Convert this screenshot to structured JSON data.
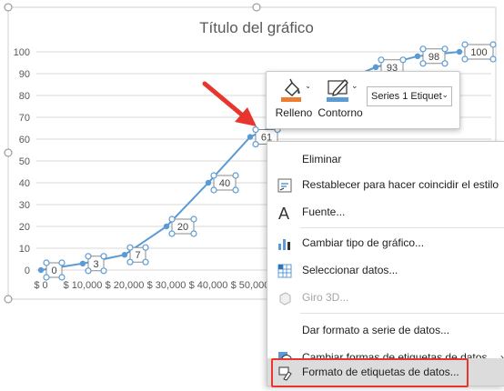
{
  "chart_data": {
    "type": "scatter",
    "title": "Título del gráfico",
    "x": [
      0,
      10000,
      20000,
      30000,
      40000,
      50000,
      60000,
      70000,
      80000,
      90000,
      100000
    ],
    "y": [
      0,
      3,
      7,
      20,
      40,
      61,
      70,
      85,
      93,
      98,
      100
    ],
    "point_labels": [
      "0",
      "3",
      "7",
      "20",
      "40",
      "61",
      "",
      "",
      "93",
      "98",
      "100"
    ],
    "x_tick_labels": [
      "$ 0",
      "$ 10,000",
      "$ 20,000",
      "$ 30,000",
      "$ 40,000",
      "$ 50,000"
    ],
    "y_ticks": [
      0,
      10,
      20,
      30,
      40,
      50,
      60,
      70,
      80,
      90,
      100
    ],
    "ylim": [
      0,
      100
    ],
    "grid": true,
    "line_color": "#5b9bd5"
  },
  "mini_toolbar": {
    "fill_label": "Relleno",
    "outline_label": "Contorno",
    "series_dropdown": "Series 1 Etiquet",
    "fill_color": "#ed7d31",
    "outline_color": "#5b9bd5"
  },
  "context_menu": {
    "items": [
      {
        "label": "Eliminar",
        "icon": "none"
      },
      {
        "label": "Restablecer para hacer coincidir el estilo",
        "icon": "reset-style-icon"
      },
      {
        "label": "Fuente...",
        "icon": "font-icon"
      },
      {
        "label": "Cambiar tipo de gráfico...",
        "icon": "chart-type-icon"
      },
      {
        "label": "Seleccionar datos...",
        "icon": "select-data-icon"
      },
      {
        "label": "Giro 3D...",
        "icon": "rotation-3d-icon"
      },
      {
        "label": "Dar formato a serie de datos...",
        "icon": "none"
      },
      {
        "label": "Cambiar formas de etiquetas de datos",
        "icon": "label-shapes-icon"
      },
      {
        "label": "Formato de etiquetas de datos...",
        "icon": "format-labels-icon"
      }
    ]
  },
  "colors": {
    "accent": "#5b9bd5",
    "arrow": "#e8362f",
    "highlight_border": "#e8362f"
  }
}
